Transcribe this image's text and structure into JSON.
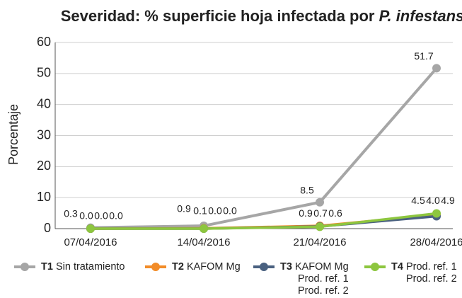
{
  "chart_data": {
    "type": "line",
    "title": [
      "Severidad: % superficie hoja infectada por",
      "P. infestans"
    ],
    "ylabel": "Porcentaje",
    "categories": [
      "07/04/2016",
      "14/04/2016",
      "21/04/2016",
      "28/04/2016"
    ],
    "ylim": [
      0,
      60
    ],
    "yticks": [
      0,
      10,
      20,
      30,
      40,
      50,
      60
    ],
    "grid": true,
    "series": [
      {
        "label": "T1",
        "name": [
          "Sin tratamiento"
        ],
        "color": "#a6a6a6",
        "values": [
          0.3,
          0.9,
          8.5,
          51.7
        ],
        "value_labels": [
          "0.3",
          "0.9",
          "8.5",
          "51.7"
        ]
      },
      {
        "label": "T2",
        "name": [
          "KAFOM Mg"
        ],
        "color": "#f28c28",
        "values": [
          0,
          0.1,
          0.9,
          4.5
        ],
        "value_labels": [
          "0.0",
          "0.1",
          "0.9",
          "4.5"
        ]
      },
      {
        "label": "T3",
        "name": [
          "KAFOM Mg",
          "Prod. ref. 1",
          "Prod. ref. 2"
        ],
        "color": "#4a6180",
        "values": [
          0,
          0,
          0.7,
          4.0
        ],
        "value_labels": [
          "0.0",
          "0.0",
          "0.7",
          "4.0"
        ]
      },
      {
        "label": "T4",
        "name": [
          "Prod. ref. 1",
          "Prod. ref. 2"
        ],
        "color": "#8dc63f",
        "values": [
          0,
          0,
          0.6,
          4.9
        ],
        "value_labels": [
          "0.0",
          "0.0",
          "0.6",
          "4.9"
        ]
      }
    ]
  }
}
